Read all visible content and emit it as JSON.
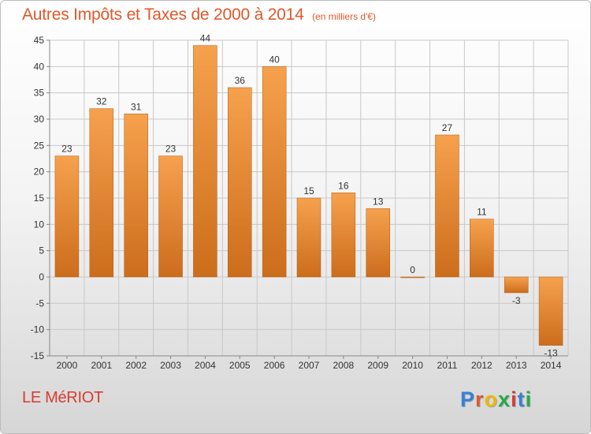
{
  "header": {
    "title": "Autres Impôts et Taxes de 2000 à 2014",
    "subtitle": "(en milliers d'€)"
  },
  "footer": {
    "commune": "LE MéRIOT",
    "brand": "Proxiti",
    "brand_letter_colors": [
      "#3a7fd5",
      "#e0582a",
      "#f2b705",
      "#2aa84a",
      "#d63c33",
      "#3a7fd5",
      "#2aa84a"
    ]
  },
  "colors": {
    "bar_light": "#f6a14d",
    "bar_dark": "#cc6d1c",
    "grid": "#c8c8c8",
    "axis": "#888888",
    "text": "#333333"
  },
  "chart_data": {
    "type": "bar",
    "categories": [
      "2000",
      "2001",
      "2002",
      "2003",
      "2004",
      "2005",
      "2006",
      "2007",
      "2008",
      "2009",
      "2010",
      "2011",
      "2012",
      "2013",
      "2014"
    ],
    "values": [
      23,
      32,
      31,
      23,
      44,
      36,
      40,
      15,
      16,
      13,
      0,
      27,
      11,
      -3,
      -13
    ],
    "value_labels": [
      "23",
      "32",
      "31",
      "23",
      "44",
      "36",
      "40",
      "15",
      "16",
      "13",
      "0",
      "27",
      "11",
      "-3",
      "-13"
    ],
    "ylim": [
      -15,
      45
    ],
    "yticks": [
      -15,
      -10,
      -5,
      0,
      5,
      10,
      15,
      20,
      25,
      30,
      35,
      40,
      45
    ],
    "ytick_labels": [
      "-15",
      "-10",
      "-5",
      "0",
      "5",
      "10",
      "15",
      "20",
      "25",
      "30",
      "35",
      "40",
      "45"
    ],
    "grid": true,
    "legend": "none"
  }
}
